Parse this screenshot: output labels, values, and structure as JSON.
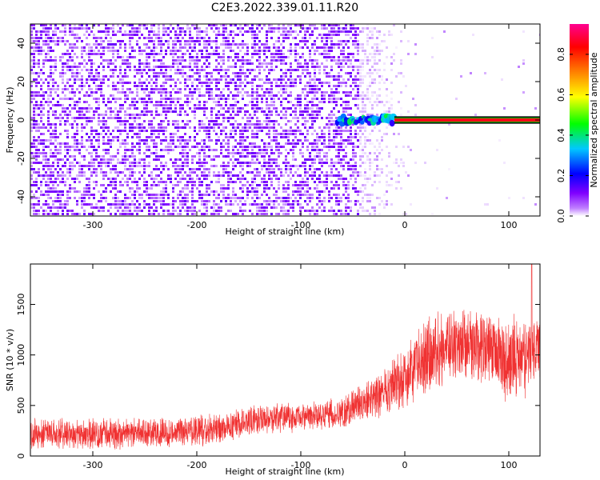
{
  "figure_title": "C2E3.2022.339.01.11.R20",
  "chart_data": [
    {
      "type": "heatmap",
      "title": "",
      "xlabel": "Height of straight line (km)",
      "ylabel": "Frequency (Hz)",
      "xlim": [
        -360,
        130
      ],
      "ylim": [
        -50,
        50
      ],
      "xticks": [
        -300,
        -200,
        -100,
        0,
        100
      ],
      "yticks": [
        -40,
        -20,
        0,
        20,
        40
      ],
      "grid": false,
      "colorbar": {
        "label": "Normalized spectral amplitude",
        "range": [
          0.0,
          0.95
        ],
        "ticks": [
          0.0,
          0.2,
          0.4,
          0.6,
          0.8
        ],
        "colormap": [
          "#ffffff",
          "#7f00ff",
          "#0000ff",
          "#00c8ff",
          "#00ff00",
          "#ffff00",
          "#ff8000",
          "#ff0000",
          "#ff0090"
        ]
      },
      "regions": [
        {
          "name": "noise",
          "x_range": [
            -360,
            -45
          ],
          "freq_range": [
            -50,
            50
          ],
          "amplitude": 0.08
        },
        {
          "name": "fading noise",
          "x_range": [
            -45,
            10
          ],
          "freq_range": [
            -50,
            50
          ],
          "amplitude": 0.03
        },
        {
          "name": "signal onset",
          "x_range": [
            -65,
            -10
          ],
          "freq_center": 0,
          "freq_halfwidth": 2,
          "amplitude": 0.3
        },
        {
          "name": "carrier line",
          "x_range": [
            -10,
            130
          ],
          "freq_center": 0,
          "freq_halfwidth": 1.5,
          "amplitude": 0.85
        }
      ]
    },
    {
      "type": "line",
      "title": "",
      "xlabel": "Height of straight line (km)",
      "ylabel": "SNR (10 * v/v)",
      "xlim": [
        -360,
        130
      ],
      "ylim": [
        0,
        1900
      ],
      "xticks": [
        -300,
        -200,
        -100,
        0,
        100
      ],
      "yticks": [
        0,
        500,
        1000,
        1500
      ],
      "grid": false,
      "color": "#f03232",
      "envelope": {
        "x": [
          -360,
          -300,
          -250,
          -200,
          -170,
          -150,
          -100,
          -60,
          -40,
          -20,
          0,
          20,
          40,
          60,
          80,
          100,
          120,
          130
        ],
        "low": [
          50,
          50,
          60,
          80,
          120,
          180,
          220,
          260,
          320,
          380,
          450,
          550,
          700,
          750,
          650,
          500,
          550,
          600
        ],
        "high": [
          400,
          380,
          400,
          420,
          450,
          530,
          550,
          600,
          750,
          900,
          1100,
          1400,
          1550,
          1500,
          1450,
          1400,
          1450,
          1450
        ]
      },
      "peak": {
        "x": 122,
        "y": 1900
      }
    }
  ]
}
